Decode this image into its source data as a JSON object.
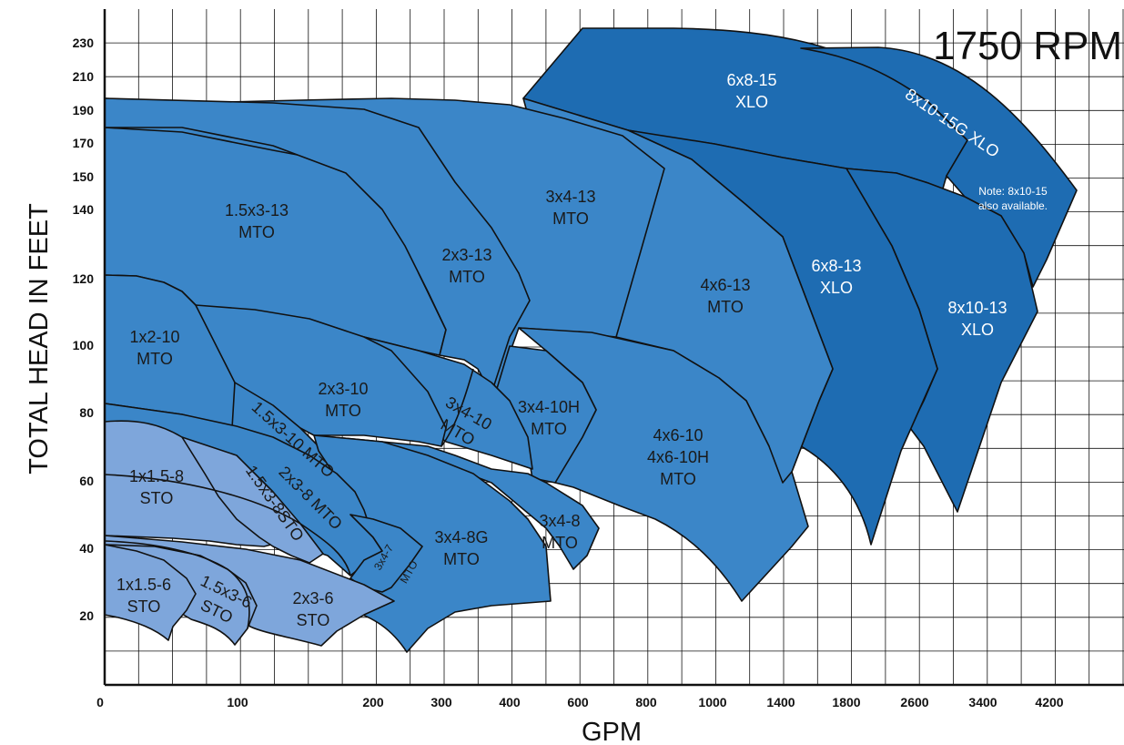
{
  "chart_data": {
    "type": "area",
    "title": "1750 RPM",
    "xlabel": "GPM",
    "ylabel": "TOTAL HEAD IN FEET",
    "x_ticks": [
      "0",
      "100",
      "200",
      "300",
      "400",
      "600",
      "800",
      "1000",
      "1400",
      "1800",
      "2600",
      "3400",
      "4200"
    ],
    "y_ticks": [
      "20",
      "40",
      "60",
      "80",
      "100",
      "120",
      "140",
      "150",
      "170",
      "190",
      "210",
      "230"
    ],
    "grid": true,
    "colors": {
      "sto": "#7ea6db",
      "mto": "#3b86c8",
      "xlo": "#1e6cb2",
      "line": "#111111"
    },
    "series": [
      {
        "label": "1x1.5-6 STO",
        "group": "sto",
        "lines": [
          "1x1.5-6",
          "STO"
        ]
      },
      {
        "label": "1.5x3-6 STO",
        "group": "sto",
        "lines": [
          "1.5x3-6",
          "STO"
        ]
      },
      {
        "label": "2x3-6 STO",
        "group": "sto",
        "lines": [
          "2x3-6",
          "STO"
        ]
      },
      {
        "label": "1x1.5-8 STO",
        "group": "sto",
        "lines": [
          "1x1.5-8",
          "STO"
        ]
      },
      {
        "label": "1.5x3-8STO",
        "group": "sto",
        "lines": [
          "1.5x3-8STO"
        ]
      },
      {
        "label": "2x3-8 MTO",
        "group": "mto",
        "lines": [
          "2x3-8 MTO"
        ]
      },
      {
        "label": "3x4-7 MTO",
        "group": "mto",
        "lines": [
          "3x4-7",
          "MTO"
        ]
      },
      {
        "label": "3x4-8G MTO",
        "group": "mto",
        "lines": [
          "3x4-8G",
          "MTO"
        ]
      },
      {
        "label": "3x4-8 MTO",
        "group": "mto",
        "lines": [
          "3x4-8",
          "MTO"
        ]
      },
      {
        "label": "1x2-10 MTO",
        "group": "mto",
        "lines": [
          "1x2-10",
          "MTO"
        ]
      },
      {
        "label": "1.5x3-10 MTO",
        "group": "mto",
        "lines": [
          "1.5x3-10 MTO"
        ]
      },
      {
        "label": "2x3-10 MTO",
        "group": "mto",
        "lines": [
          "2x3-10",
          "MTO"
        ]
      },
      {
        "label": "3x4-10 MTO",
        "group": "mto",
        "lines": [
          "3x4-10",
          "MTO"
        ]
      },
      {
        "label": "3x4-10H MTO",
        "group": "mto",
        "lines": [
          "3x4-10H",
          "MTO"
        ]
      },
      {
        "label": "4x6-10 4x6-10H MTO",
        "group": "mto",
        "lines": [
          "4x6-10",
          "4x6-10H",
          "MTO"
        ]
      },
      {
        "label": "1.5x3-13 MTO",
        "group": "mto",
        "lines": [
          "1.5x3-13",
          "MTO"
        ]
      },
      {
        "label": "2x3-13 MTO",
        "group": "mto",
        "lines": [
          "2x3-13",
          "MTO"
        ]
      },
      {
        "label": "3x4-13 MTO",
        "group": "mto",
        "lines": [
          "3x4-13",
          "MTO"
        ]
      },
      {
        "label": "4x6-13 MTO",
        "group": "mto",
        "lines": [
          "4x6-13",
          "MTO"
        ]
      },
      {
        "label": "6x8-13 XLO",
        "group": "xlo",
        "lines": [
          "6x8-13",
          "XLO"
        ]
      },
      {
        "label": "8x10-13 XLO",
        "group": "xlo",
        "lines": [
          "8x10-13",
          "XLO"
        ]
      },
      {
        "label": "6x8-15 XLO",
        "group": "xlo",
        "lines": [
          "6x8-15",
          "XLO"
        ]
      },
      {
        "label": "8x10-15G XLO",
        "group": "xlo",
        "lines": [
          "8x10-15G XLO"
        ]
      }
    ],
    "annotations": [
      "Note: 8x10-15",
      "also available."
    ]
  }
}
